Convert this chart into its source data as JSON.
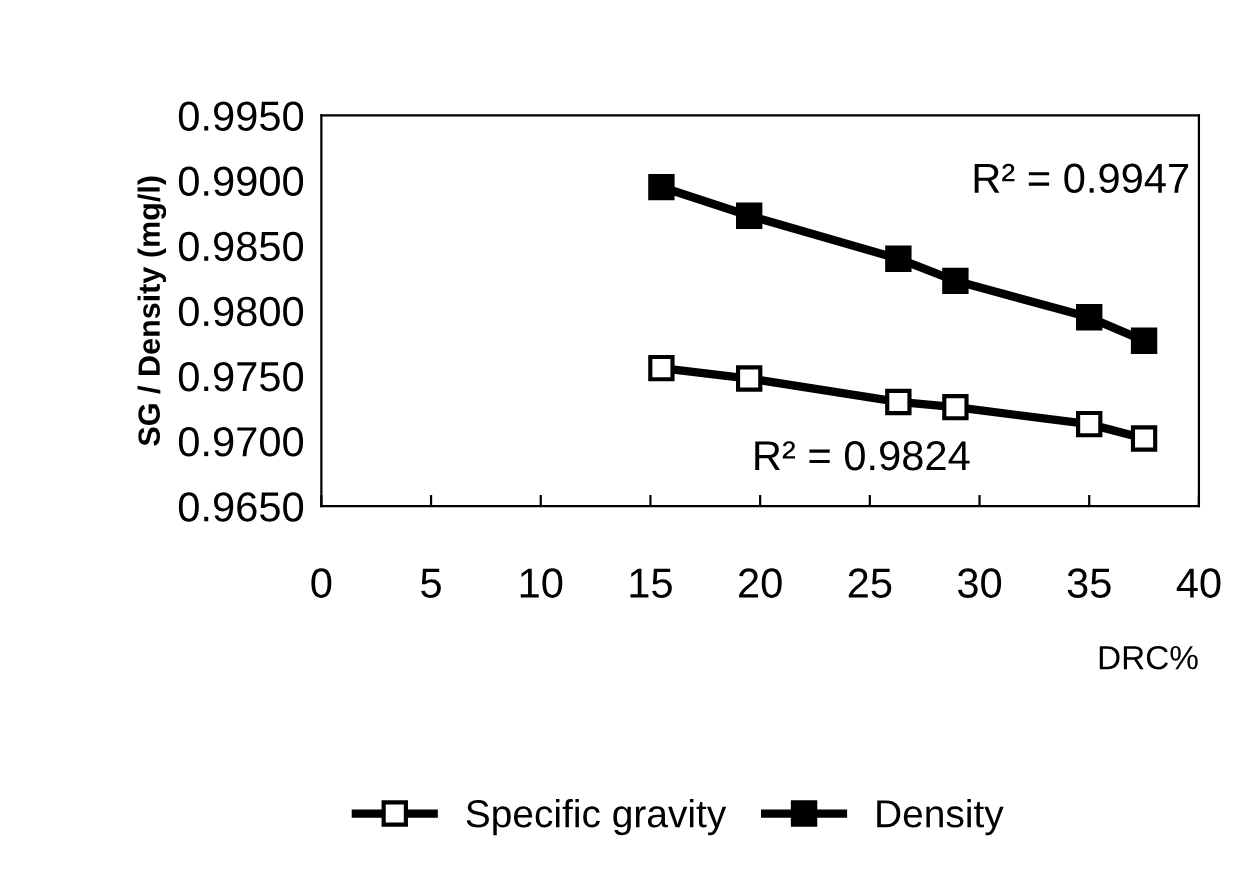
{
  "chart_data": {
    "type": "line",
    "xlabel": "DRC%",
    "ylabel": "SG / Density (mg/l)",
    "x": [
      15.5,
      19.5,
      26.3,
      28.9,
      35,
      37.5
    ],
    "xlim": [
      0,
      40
    ],
    "xticks": [
      0,
      5,
      10,
      15,
      20,
      25,
      30,
      35,
      40
    ],
    "ylim": [
      0.965,
      0.995
    ],
    "yticks": [
      {
        "value": 0.965,
        "label": "0.9650"
      },
      {
        "value": 0.97,
        "label": "0.9700"
      },
      {
        "value": 0.975,
        "label": "0.9750"
      },
      {
        "value": 0.98,
        "label": "0.9800"
      },
      {
        "value": 0.985,
        "label": "0.9850"
      },
      {
        "value": 0.99,
        "label": "0.9900"
      },
      {
        "value": 0.995,
        "label": "0.9950"
      }
    ],
    "series": [
      {
        "name": "Specific gravity",
        "color": "#000000",
        "marker": "square",
        "values": [
          0.9756,
          0.9748,
          0.973,
          0.9726,
          0.9713,
          0.9702
        ]
      },
      {
        "name": "Density",
        "color": "#000000",
        "marker": "square",
        "values": [
          0.9895,
          0.9873,
          0.984,
          0.9823,
          0.9795,
          0.9777
        ]
      }
    ],
    "annotations": [
      "R² = 0.9947",
      "R² = 0.9824"
    ],
    "legend": "bottom",
    "grid": false,
    "line_style": "solid"
  }
}
